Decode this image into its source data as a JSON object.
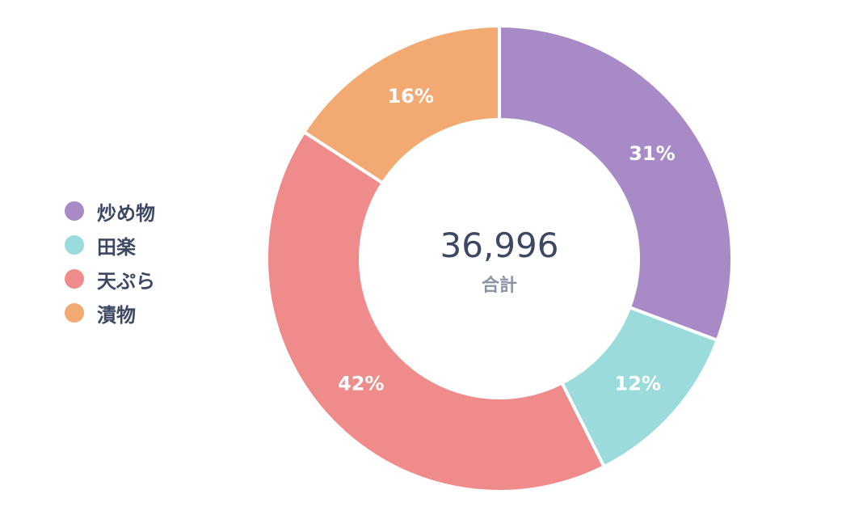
{
  "chart_data": {
    "type": "pie",
    "variant": "donut",
    "categories": [
      "炒め物",
      "田楽",
      "天ぷら",
      "漬物"
    ],
    "percentages": [
      31,
      12,
      42,
      16
    ],
    "data_labels": [
      "31%",
      "12%",
      "42%",
      "16%"
    ],
    "colors": [
      "#a78ac6",
      "#9bdbdb",
      "#ef8c8b",
      "#f2a972"
    ],
    "center_value": "36,996",
    "center_label": "合計",
    "legend_position": "left"
  }
}
